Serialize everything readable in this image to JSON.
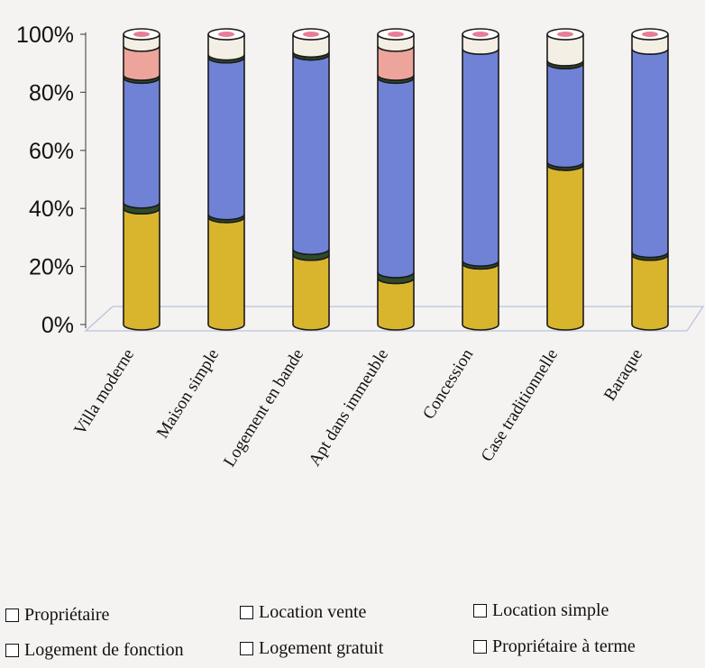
{
  "chart_data": {
    "type": "bar",
    "stacked": true,
    "percent": true,
    "three_d": true,
    "categories": [
      "Villa moderne",
      "Maison simple",
      "Logement en bande",
      "Apt dans immeuble",
      "Concession",
      "Case traditionnelle",
      "Baraque"
    ],
    "series": [
      {
        "name": "Propriétaire",
        "color": "#d9b52e",
        "values": [
          40,
          37,
          24,
          16,
          21,
          55,
          24
        ]
      },
      {
        "name": "Location vente",
        "color": "#2f4a2a",
        "values": [
          2,
          1,
          2,
          2,
          1,
          1,
          1
        ]
      },
      {
        "name": "Location simple",
        "color": "#6f82d6",
        "values": [
          43,
          54,
          67,
          67,
          73,
          34,
          70
        ]
      },
      {
        "name": "Logement de fonction",
        "color": "#2f4a2a",
        "values": [
          1,
          1,
          1,
          1,
          0,
          1,
          0
        ]
      },
      {
        "name": "Logement gratuit",
        "color": "#eda59b",
        "values": [
          10,
          0,
          0,
          10,
          0,
          0,
          0
        ]
      },
      {
        "name": "Propriétaire à terme",
        "color": "#f4efe4",
        "values": [
          4,
          7,
          6,
          4,
          5,
          9,
          5
        ]
      }
    ],
    "ylim": [
      0,
      100
    ],
    "yticks": [
      "0%",
      "20%",
      "40%",
      "60%",
      "80%",
      "100%"
    ],
    "grid": false,
    "legend_position": "bottom"
  }
}
